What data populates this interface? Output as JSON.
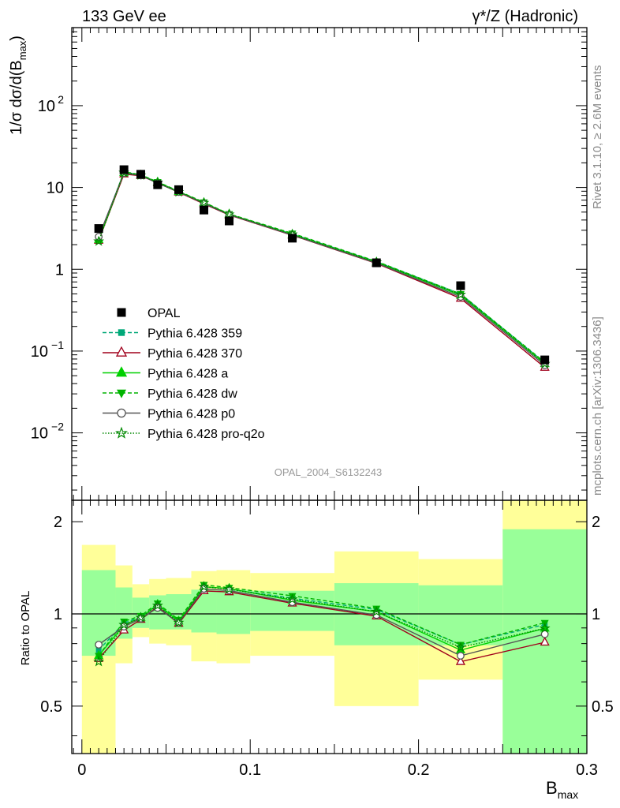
{
  "header": {
    "left": "133 GeV ee",
    "right": "γ*/Z (Hadronic)"
  },
  "side_text": {
    "rivet": "Rivet 3.1.10, ≥ 2.6M events",
    "site": "mcplots.cern.ch [arXiv:1306.3436]"
  },
  "watermark": "OPAL_2004_S6132243",
  "chart_data": [
    {
      "type": "scatter",
      "panel": "main",
      "ylabel": "1/σ dσ/d(B_max)",
      "yscale": "log",
      "ylim": [
        0.0015,
        900
      ],
      "xlim": [
        -0.006,
        0.3
      ],
      "yticks": [
        {
          "v": 0.01,
          "base": "10",
          "exp": "−2"
        },
        {
          "v": 0.1,
          "base": "10",
          "exp": "−1"
        },
        {
          "v": 1,
          "base": "1",
          "exp": ""
        },
        {
          "v": 10,
          "base": "10",
          "exp": ""
        },
        {
          "v": 100,
          "base": "10",
          "exp": "2"
        }
      ],
      "data": {
        "name": "OPAL",
        "x": [
          0.01,
          0.025,
          0.035,
          0.045,
          0.0575,
          0.0725,
          0.0875,
          0.125,
          0.175,
          0.225,
          0.275
        ],
        "y": [
          3.15,
          16.5,
          14.5,
          10.8,
          9.4,
          5.3,
          3.9,
          2.4,
          1.2,
          0.63,
          0.078
        ]
      },
      "series": [
        {
          "name": "Pythia 6.428 359",
          "color": "#00a878",
          "dash": "5,3",
          "marker": "square",
          "y": [
            2.4,
            15.4,
            14.2,
            11.5,
            8.9,
            6.5,
            4.7,
            2.7,
            1.24,
            0.5,
            0.072
          ]
        },
        {
          "name": "Pythia 6.428 370",
          "color": "#a0001c",
          "dash": "",
          "marker": "triangle-open",
          "y": [
            2.25,
            14.6,
            13.9,
            11.4,
            8.75,
            6.3,
            4.6,
            2.6,
            1.18,
            0.44,
            0.063
          ]
        },
        {
          "name": "Pythia 6.428 a",
          "color": "#00d000",
          "dash": "",
          "marker": "triangle",
          "y": [
            2.3,
            15.2,
            14.1,
            11.6,
            8.9,
            6.5,
            4.72,
            2.66,
            1.22,
            0.48,
            0.07
          ]
        },
        {
          "name": "Pythia 6.428 dw",
          "color": "#00b400",
          "dash": "5,3",
          "marker": "triangle-down",
          "y": [
            2.3,
            15.6,
            14.3,
            11.7,
            9.0,
            6.6,
            4.75,
            2.75,
            1.25,
            0.5,
            0.073
          ]
        },
        {
          "name": "Pythia 6.428 p0",
          "color": "#555555",
          "dash": "",
          "marker": "circle-open",
          "y": [
            2.5,
            15.0,
            14.0,
            11.3,
            8.8,
            6.4,
            4.65,
            2.62,
            1.19,
            0.46,
            0.067
          ]
        },
        {
          "name": "Pythia 6.428 pro-q2o",
          "color": "#008800",
          "dash": "1.5,2",
          "marker": "star",
          "y": [
            2.2,
            15.2,
            14.1,
            11.5,
            8.8,
            6.5,
            4.7,
            2.68,
            1.22,
            0.49,
            0.07
          ]
        }
      ]
    },
    {
      "type": "scatter",
      "panel": "ratio",
      "ylabel": "Ratio to OPAL",
      "xlabel": "B_max",
      "yscale": "log",
      "ylim": [
        0.35,
        2.35
      ],
      "xlim": [
        -0.006,
        0.3
      ],
      "yticks": [
        {
          "v": 0.5,
          "label": "0.5"
        },
        {
          "v": 1,
          "label": "1"
        },
        {
          "v": 2,
          "label": "2"
        }
      ],
      "xticks": [
        {
          "v": 0,
          "label": "0"
        },
        {
          "v": 0.1,
          "label": "0.1"
        },
        {
          "v": 0.2,
          "label": "0.2"
        },
        {
          "v": 0.3,
          "label": "0.3"
        }
      ],
      "bands": [
        {
          "x0": 0.0,
          "x1": 0.02,
          "y0": 0.35,
          "y1": 1.68,
          "g0": 0.73,
          "g1": 1.39
        },
        {
          "x0": 0.02,
          "x1": 0.03,
          "y0": 0.69,
          "y1": 1.44,
          "g0": 0.83,
          "g1": 1.22
        },
        {
          "x0": 0.03,
          "x1": 0.04,
          "y0": 0.84,
          "y1": 1.25,
          "g0": 0.9,
          "g1": 1.13
        },
        {
          "x0": 0.04,
          "x1": 0.05,
          "y0": 0.8,
          "y1": 1.3,
          "g0": 0.89,
          "g1": 1.15
        },
        {
          "x0": 0.05,
          "x1": 0.065,
          "y0": 0.79,
          "y1": 1.31,
          "g0": 0.89,
          "g1": 1.16
        },
        {
          "x0": 0.065,
          "x1": 0.08,
          "y0": 0.7,
          "y1": 1.38,
          "g0": 0.87,
          "g1": 1.2
        },
        {
          "x0": 0.08,
          "x1": 0.1,
          "y0": 0.69,
          "y1": 1.39,
          "g0": 0.86,
          "g1": 1.2
        },
        {
          "x0": 0.1,
          "x1": 0.15,
          "y0": 0.73,
          "y1": 1.36,
          "g0": 0.88,
          "g1": 1.19
        },
        {
          "x0": 0.15,
          "x1": 0.2,
          "y0": 0.5,
          "y1": 1.6,
          "g0": 0.79,
          "g1": 1.26
        },
        {
          "x0": 0.2,
          "x1": 0.25,
          "y0": 0.61,
          "y1": 1.51,
          "g0": 0.79,
          "g1": 1.24
        },
        {
          "x0": 0.25,
          "x1": 0.3,
          "y0": 0.35,
          "y1": 2.35,
          "g0": 0.35,
          "g1": 1.89
        }
      ]
    }
  ]
}
